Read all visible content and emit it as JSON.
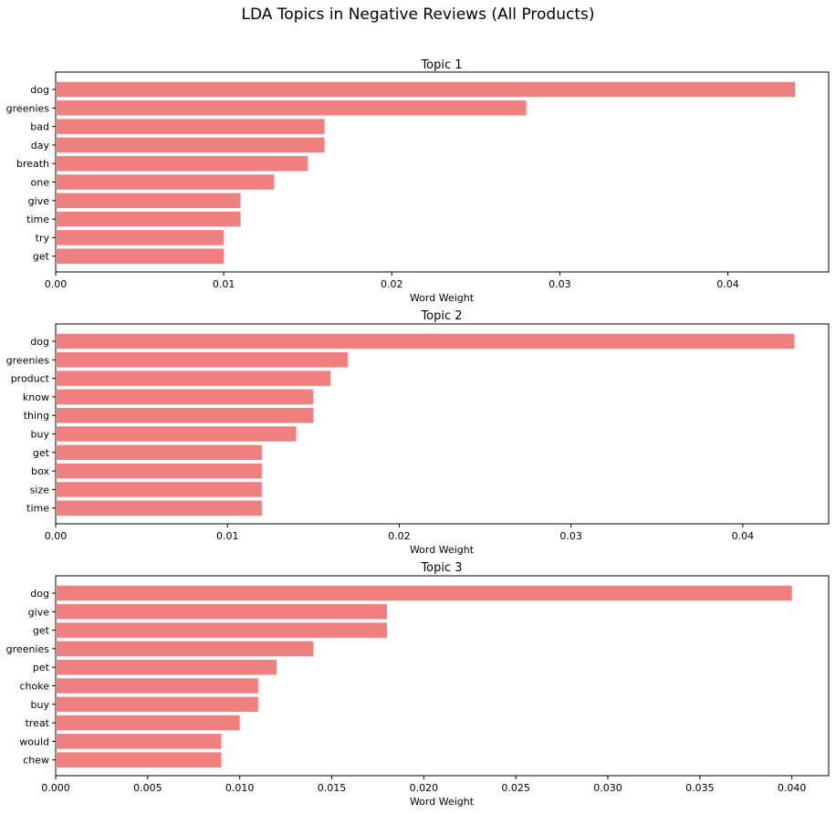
{
  "figure": {
    "title": "LDA Topics in Negative Reviews (All Products)"
  },
  "chart_data": [
    {
      "type": "bar",
      "orientation": "horizontal",
      "title": "Topic 1",
      "xlabel": "Word Weight",
      "ylabel": "",
      "categories": [
        "dog",
        "greenies",
        "bad",
        "day",
        "breath",
        "one",
        "give",
        "time",
        "try",
        "get"
      ],
      "values": [
        0.044,
        0.028,
        0.016,
        0.016,
        0.015,
        0.013,
        0.011,
        0.011,
        0.01,
        0.01
      ],
      "xlim": [
        0,
        0.046
      ],
      "xticks": [
        0.0,
        0.01,
        0.02,
        0.03,
        0.04
      ],
      "xtick_labels": [
        "0.00",
        "0.01",
        "0.02",
        "0.03",
        "0.04"
      ],
      "color": "#f08080",
      "grid": false
    },
    {
      "type": "bar",
      "orientation": "horizontal",
      "title": "Topic 2",
      "xlabel": "Word Weight",
      "ylabel": "",
      "categories": [
        "dog",
        "greenies",
        "product",
        "know",
        "thing",
        "buy",
        "get",
        "box",
        "size",
        "time"
      ],
      "values": [
        0.043,
        0.017,
        0.016,
        0.015,
        0.015,
        0.014,
        0.012,
        0.012,
        0.012,
        0.012
      ],
      "xlim": [
        0,
        0.045
      ],
      "xticks": [
        0.0,
        0.01,
        0.02,
        0.03,
        0.04
      ],
      "xtick_labels": [
        "0.00",
        "0.01",
        "0.02",
        "0.03",
        "0.04"
      ],
      "color": "#f08080",
      "grid": false
    },
    {
      "type": "bar",
      "orientation": "horizontal",
      "title": "Topic 3",
      "xlabel": "Word Weight",
      "ylabel": "",
      "categories": [
        "dog",
        "give",
        "get",
        "greenies",
        "pet",
        "choke",
        "buy",
        "treat",
        "would",
        "chew"
      ],
      "values": [
        0.04,
        0.018,
        0.018,
        0.014,
        0.012,
        0.011,
        0.011,
        0.01,
        0.009,
        0.009
      ],
      "xlim": [
        0,
        0.042
      ],
      "xticks": [
        0.0,
        0.005,
        0.01,
        0.015,
        0.02,
        0.025,
        0.03,
        0.035,
        0.04
      ],
      "xtick_labels": [
        "0.000",
        "0.005",
        "0.010",
        "0.015",
        "0.020",
        "0.025",
        "0.030",
        "0.035",
        "0.040"
      ],
      "color": "#f08080",
      "grid": false
    }
  ]
}
